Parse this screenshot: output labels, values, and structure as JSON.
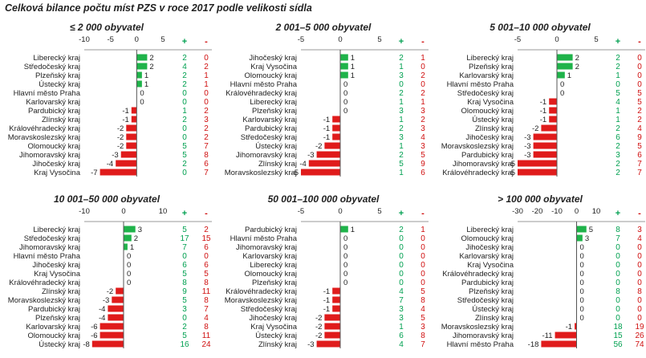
{
  "title": "Celková bilance počtu míst PZS v roce 2017 podle velikosti sídla",
  "colors": {
    "positive": "#1fb34a",
    "negative": "#e01b1b",
    "plus_text": "#00a050",
    "minus_text": "#d01010"
  },
  "headers": {
    "plus": "+",
    "minus": "-"
  },
  "chart_data": [
    {
      "type": "bar",
      "title": "≤ 2 000 obyvatel",
      "xlim": [
        -10,
        5
      ],
      "ticks": [
        -10,
        -5,
        0,
        5
      ],
      "categories": [
        "Liberecký kraj",
        "Středočeský kraj",
        "Plzeňský kraj",
        "Ústecký kraj",
        "Hlavní město Praha",
        "Karlovarský kraj",
        "Pardubický kraj",
        "Zlínský kraj",
        "Královéhradecký kraj",
        "Moravskoslezský kraj",
        "Olomoucký kraj",
        "Jihomoravský kraj",
        "Jihočeský kraj",
        "Kraj Vysočina"
      ],
      "values": [
        2,
        2,
        1,
        1,
        0,
        0,
        -1,
        -1,
        -2,
        -2,
        -2,
        -3,
        -4,
        -7
      ],
      "plus": [
        2,
        4,
        2,
        2,
        0,
        0,
        1,
        2,
        0,
        0,
        5,
        5,
        2,
        0
      ],
      "minus": [
        0,
        2,
        1,
        1,
        0,
        0,
        2,
        3,
        2,
        2,
        7,
        8,
        6,
        7
      ]
    },
    {
      "type": "bar",
      "title": "2 001–5 000 obyvatel",
      "xlim": [
        -5,
        5
      ],
      "ticks": [
        -5,
        0,
        5
      ],
      "categories": [
        "Jihočeský kraj",
        "Kraj Vysočina",
        "Olomoucký kraj",
        "Hlavní město Praha",
        "Královéhradecký kraj",
        "Liberecký kraj",
        "Plzeňský kraj",
        "Karlovarský kraj",
        "Pardubický kraj",
        "Středočeský kraj",
        "Ústecký kraj",
        "Jihomoravský kraj",
        "Zlínský kraj",
        "Moravskoslezský kraj"
      ],
      "values": [
        1,
        1,
        1,
        0,
        0,
        0,
        0,
        -1,
        -1,
        -1,
        -2,
        -3,
        -4,
        -5
      ],
      "plus": [
        2,
        1,
        3,
        0,
        2,
        1,
        3,
        1,
        2,
        3,
        1,
        2,
        5,
        1
      ],
      "minus": [
        1,
        0,
        2,
        0,
        2,
        1,
        3,
        2,
        3,
        4,
        3,
        5,
        9,
        6
      ]
    },
    {
      "type": "bar",
      "title": "5 001–10 000 obyvatel",
      "xlim": [
        -5,
        5
      ],
      "ticks": [
        -5,
        0,
        5
      ],
      "categories": [
        "Liberecký kraj",
        "Plzeňský kraj",
        "Karlovarský kraj",
        "Hlavní město Praha",
        "Středočeský kraj",
        "Kraj Vysočina",
        "Olomoucký kraj",
        "Ústecký kraj",
        "Zlínský kraj",
        "Jihočeský kraj",
        "Moravskoslezský kraj",
        "Pardubický kraj",
        "Jihomoravský kraj",
        "Královéhradecký kraj"
      ],
      "values": [
        2,
        2,
        1,
        0,
        0,
        -1,
        -1,
        -1,
        -2,
        -3,
        -3,
        -3,
        -5,
        -5
      ],
      "plus": [
        2,
        2,
        1,
        0,
        5,
        4,
        1,
        1,
        2,
        6,
        2,
        3,
        2,
        2
      ],
      "minus": [
        0,
        0,
        0,
        0,
        5,
        5,
        2,
        2,
        4,
        9,
        5,
        6,
        7,
        7
      ]
    },
    {
      "type": "bar",
      "title": "10 001–50 000 obyvatel",
      "xlim": [
        -10,
        10
      ],
      "ticks": [
        -10,
        0,
        10
      ],
      "categories": [
        "Liberecký kraj",
        "Středočeský kraj",
        "Jihomoravský kraj",
        "Hlavní město Praha",
        "Jihočeský kraj",
        "Kraj Vysočina",
        "Královéhradecký kraj",
        "Zlínský kraj",
        "Moravskoslezský kraj",
        "Pardubický kraj",
        "Plzeňský kraj",
        "Karlovarský kraj",
        "Olomoucký kraj",
        "Ústecký kraj"
      ],
      "values": [
        3,
        2,
        1,
        0,
        0,
        0,
        0,
        -2,
        -3,
        -4,
        -4,
        -6,
        -6,
        -8
      ],
      "plus": [
        5,
        17,
        7,
        0,
        6,
        5,
        8,
        9,
        5,
        3,
        0,
        2,
        5,
        16
      ],
      "minus": [
        2,
        15,
        6,
        0,
        6,
        5,
        8,
        11,
        8,
        7,
        4,
        8,
        11,
        24
      ]
    },
    {
      "type": "bar",
      "title": "50 001–100 000 obyvatel",
      "xlim": [
        -5,
        5
      ],
      "ticks": [
        -5,
        0,
        5
      ],
      "categories": [
        "Pardubický kraj",
        "Hlavní město Praha",
        "Jihomoravský kraj",
        "Karlovarský kraj",
        "Liberecký kraj",
        "Olomoucký kraj",
        "Plzeňský kraj",
        "Královéhradecký kraj",
        "Moravskoslezský kraj",
        "Středočeský kraj",
        "Jihočeský kraj",
        "Kraj Vysočina",
        "Ústecký kraj",
        "Zlínský kraj"
      ],
      "values": [
        1,
        0,
        0,
        0,
        0,
        0,
        0,
        -1,
        -1,
        -1,
        -2,
        -2,
        -2,
        -3
      ],
      "plus": [
        2,
        0,
        0,
        0,
        0,
        0,
        0,
        4,
        7,
        3,
        3,
        1,
        6,
        4
      ],
      "minus": [
        1,
        0,
        0,
        0,
        0,
        0,
        0,
        5,
        8,
        4,
        5,
        3,
        8,
        7
      ]
    },
    {
      "type": "bar",
      "title": "> 100 000 obyvatel",
      "xlim": [
        -30,
        10
      ],
      "ticks": [
        -30,
        -20,
        -10,
        0,
        10
      ],
      "categories": [
        "Liberecký kraj",
        "Olomoucký kraj",
        "Jihočeský kraj",
        "Karlovarský kraj",
        "Kraj Vysočina",
        "Královéhradecký kraj",
        "Pardubický kraj",
        "Plzeňský kraj",
        "Středočeský kraj",
        "Ústecký kraj",
        "Zlínský kraj",
        "Moravskoslezský kraj",
        "Jihomoravský kraj",
        "Hlavní město Praha"
      ],
      "values": [
        5,
        3,
        0,
        0,
        0,
        0,
        0,
        0,
        0,
        0,
        0,
        -1,
        -11,
        -18
      ],
      "plus": [
        8,
        7,
        0,
        0,
        0,
        0,
        0,
        8,
        0,
        0,
        0,
        18,
        15,
        56
      ],
      "minus": [
        3,
        4,
        0,
        0,
        0,
        0,
        0,
        8,
        0,
        0,
        0,
        19,
        26,
        74
      ]
    }
  ]
}
